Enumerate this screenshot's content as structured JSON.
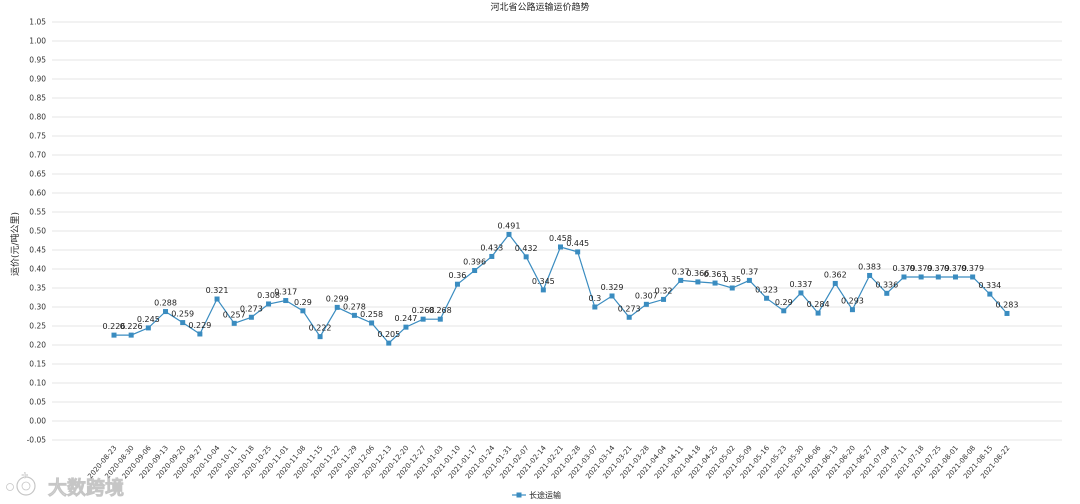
{
  "chart_data": {
    "type": "line",
    "title": "河北省公路运输运价趋势",
    "ylabel": "运价(元/吨公里)",
    "xlabel": "",
    "ylim": [
      -0.05,
      1.05
    ],
    "yticks": [
      "1.05",
      "1.00",
      "0.95",
      "0.90",
      "0.85",
      "0.80",
      "0.75",
      "0.70",
      "0.65",
      "0.60",
      "0.55",
      "0.50",
      "0.45",
      "0.40",
      "0.35",
      "0.30",
      "0.25",
      "0.20",
      "0.15",
      "0.10",
      "0.05",
      "0.00",
      "-0.05"
    ],
    "grid": true,
    "legend_position": "bottom-center",
    "color": "#3a8cc0",
    "categories": [
      "2020-08-23",
      "2020-08-30",
      "2020-09-06",
      "2020-09-13",
      "2020-09-20",
      "2020-09-27",
      "2020-10-04",
      "2020-10-11",
      "2020-10-18",
      "2020-10-25",
      "2020-11-01",
      "2020-11-08",
      "2020-11-15",
      "2020-11-22",
      "2020-11-29",
      "2020-12-06",
      "2020-12-13",
      "2020-12-20",
      "2020-12-27",
      "2021-01-03",
      "2021-01-10",
      "2021-01-17",
      "2021-01-24",
      "2021-01-31",
      "2021-02-07",
      "2021-02-14",
      "2021-02-21",
      "2021-02-28",
      "2021-03-07",
      "2021-03-14",
      "2021-03-21",
      "2021-03-28",
      "2021-04-04",
      "2021-04-11",
      "2021-04-18",
      "2021-04-25",
      "2021-05-02",
      "2021-05-09",
      "2021-05-16",
      "2021-05-23",
      "2021-05-30",
      "2021-06-06",
      "2021-06-13",
      "2021-06-20",
      "2021-06-27",
      "2021-07-04",
      "2021-07-11",
      "2021-07-18",
      "2021-07-25",
      "2021-08-01",
      "2021-08-08",
      "2021-08-15",
      "2021-08-22"
    ],
    "series": [
      {
        "name": "长途运输",
        "values": [
          0.226,
          0.226,
          0.245,
          0.288,
          0.259,
          0.229,
          0.321,
          0.257,
          0.273,
          0.308,
          0.317,
          0.29,
          0.222,
          0.299,
          0.278,
          0.258,
          0.205,
          0.247,
          0.268,
          0.268,
          0.36,
          0.396,
          0.433,
          0.491,
          0.432,
          0.345,
          0.458,
          0.445,
          0.3,
          0.329,
          0.273,
          0.307,
          0.32,
          0.37,
          0.366,
          0.363,
          0.35,
          0.37,
          0.323,
          0.29,
          0.337,
          0.284,
          0.362,
          0.293,
          0.383,
          0.336,
          0.379,
          0.379,
          0.379,
          0.379,
          0.379,
          0.334,
          0.283
        ],
        "labels": [
          "0.226",
          "0.226",
          "0.245",
          "0.288",
          "0.259",
          "0.229",
          "0.321",
          "0.257",
          "0.273",
          "0.308",
          "0.317",
          "0.29",
          "0.222",
          "0.299",
          "0.278",
          "0.258",
          "0.205",
          "0.247",
          "0.268",
          "0.268",
          "0.36",
          "0.396",
          "0.433",
          "0.491",
          "0.432",
          "0.345",
          "0.458",
          "0.445",
          "0.3",
          "0.329",
          "0.273",
          "0.307",
          "0.32",
          "0.37",
          "0.366",
          "0.363",
          "0.35",
          "0.37",
          "0.323",
          "0.29",
          "0.337",
          "0.284",
          "0.362",
          "0.293",
          "0.383",
          "0.336",
          "0.379",
          "0.379",
          "0.379",
          "0.379",
          "0.379",
          "0.334",
          "0.283"
        ]
      }
    ]
  },
  "watermark": {
    "text": "大数跨境",
    "icon": "logo-mark-icon"
  }
}
